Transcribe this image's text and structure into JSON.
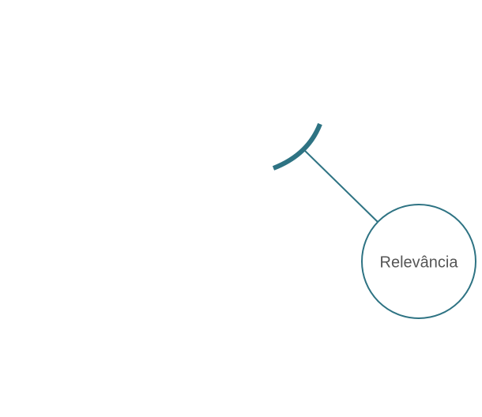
{
  "colors": {
    "accent": "#2e7383",
    "text": "#555555",
    "background": "#ffffff"
  },
  "node": {
    "label": "Relevância"
  }
}
